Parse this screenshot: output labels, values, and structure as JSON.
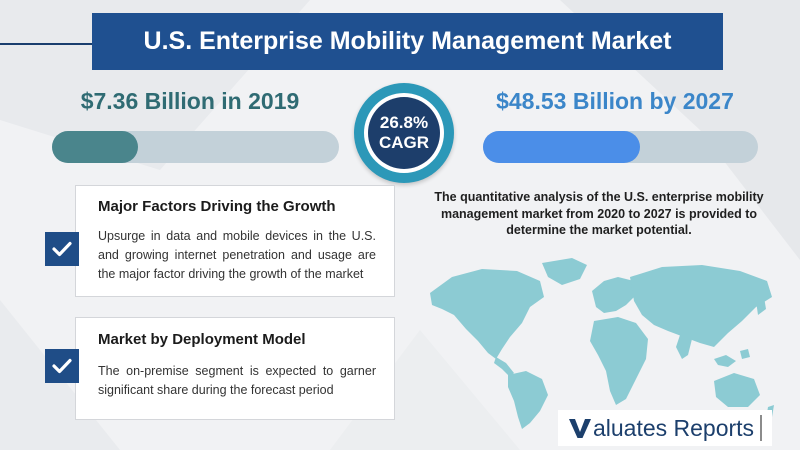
{
  "title": "U.S. Enterprise Mobility Management Market",
  "market_2019": {
    "label": "$7.36 Billion in 2019",
    "value_billion": 7.36,
    "bar_fraction": 0.3
  },
  "market_2027": {
    "label": "$48.53 Billion by 2027",
    "value_billion": 48.53,
    "bar_fraction": 0.57
  },
  "cagr": {
    "value": "26.8%",
    "label": "CAGR"
  },
  "factors_card": {
    "title": "Major Factors Driving the Growth",
    "text": "Upsurge in data and mobile devices in the U.S. and growing internet penetration and usage are the major factor driving the growth of the market"
  },
  "deployment_card": {
    "title": "Market by Deployment Model",
    "text": "The on-premise segment is expected to garner significant share during the forecast period"
  },
  "description": "The quantitative analysis of the U.S. enterprise mobility management market from 2020 to 2027 is provided to determine the market potential.",
  "logo": {
    "mark": "V",
    "text": "aluates Reports"
  },
  "icons": [
    "check-icon",
    "world-map"
  ],
  "colors": {
    "title_banner": "#1f5090",
    "left_value": "#2f6b73",
    "right_value": "#3b86c9",
    "left_bar_fill": "#4a858c",
    "right_bar_fill": "#4b8ee8",
    "cagr_ring": "#2c98b8",
    "cagr_core": "#1d3e6b",
    "map": "#8ccbd3"
  }
}
